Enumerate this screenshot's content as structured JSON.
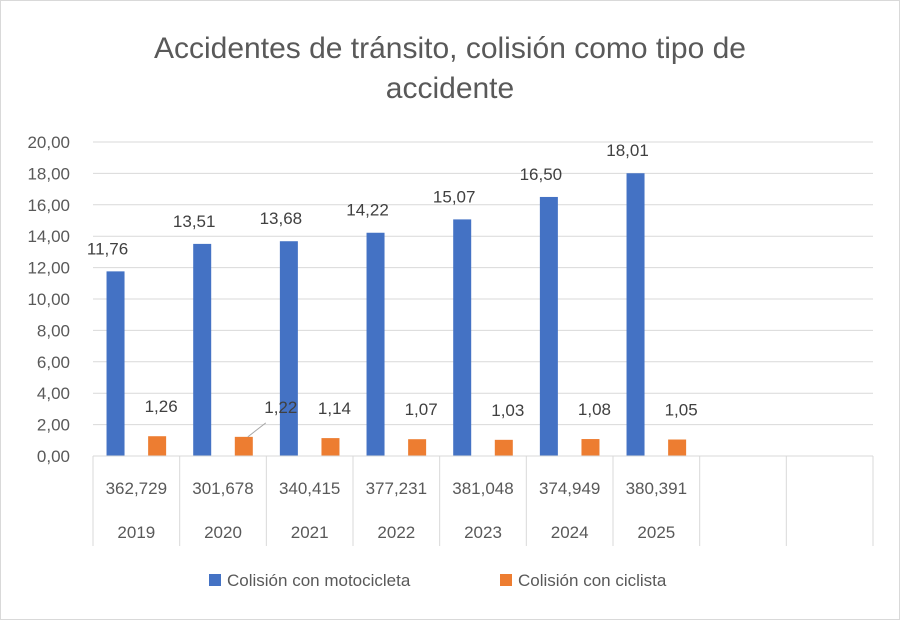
{
  "chart_data": {
    "type": "bar",
    "title": "Accidentes de tránsito, colisión como tipo de accidente",
    "title_lines": [
      "Accidentes de tránsito, colisión como tipo de",
      "accidente"
    ],
    "categories": [
      "2019",
      "2020",
      "2021",
      "2022",
      "2023",
      "2024",
      "2025",
      "",
      ""
    ],
    "sub_categories": [
      "362,729",
      "301,678",
      "340,415",
      "377,231",
      "381,048",
      "374,949",
      "380,391",
      "",
      ""
    ],
    "series": [
      {
        "name": "Colisión con motocicleta",
        "color": "#4472c4",
        "values": [
          11.76,
          13.51,
          13.68,
          14.22,
          15.07,
          16.5,
          18.01,
          null,
          null
        ],
        "labels": [
          "11,76",
          "13,51",
          "13,68",
          "14,22",
          "15,07",
          "16,50",
          "18,01",
          "",
          ""
        ]
      },
      {
        "name": "Colisión con ciclista",
        "color": "#ed7d31",
        "values": [
          1.26,
          1.22,
          1.14,
          1.07,
          1.03,
          1.08,
          1.05,
          null,
          null
        ],
        "labels": [
          "1,26",
          "1,22",
          "1,14",
          "1,07",
          "1,03",
          "1,08",
          "1,05",
          "",
          ""
        ]
      }
    ],
    "ylim": [
      0,
      20
    ],
    "y_ticks": [
      "0,00",
      "2,00",
      "4,00",
      "6,00",
      "8,00",
      "10,00",
      "12,00",
      "14,00",
      "16,00",
      "18,00",
      "20,00"
    ],
    "grid": true,
    "legend_position": "bottom"
  }
}
